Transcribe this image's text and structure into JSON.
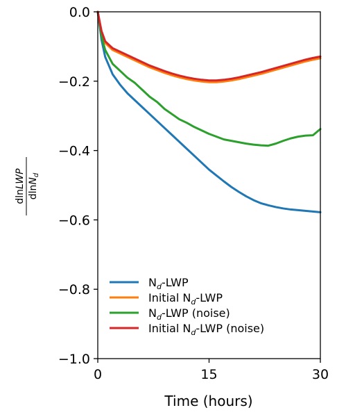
{
  "chart_data": {
    "type": "line",
    "xlabel": "Time (hours)",
    "ylabel_numerator": "dlnLWP",
    "ylabel_denominator": "dlnN_d",
    "xlim": [
      0,
      30
    ],
    "ylim": [
      -1.0,
      0.0
    ],
    "x_ticks": [
      0,
      15,
      30
    ],
    "x_tick_labels": [
      "0",
      "15",
      "30"
    ],
    "y_ticks": [
      0.0,
      -0.2,
      -0.4,
      -0.6,
      -0.8,
      -1.0
    ],
    "y_tick_labels": [
      "0.0",
      "−0.2",
      "−0.4",
      "−0.6",
      "−0.8",
      "−1.0"
    ],
    "grid": false,
    "legend_position": "lower-left",
    "series": [
      {
        "name": "N_d-LWP",
        "legend_main": "N",
        "legend_sub": "d",
        "legend_suffix": "-LWP",
        "color": "#1f77b4",
        "x": [
          0,
          0.5,
          1,
          2,
          3,
          4,
          5,
          6,
          7,
          8,
          9,
          10,
          11,
          12,
          13,
          14,
          15,
          16,
          17,
          18,
          19,
          20,
          21,
          22,
          23,
          24,
          25,
          26,
          27,
          28,
          29,
          30
        ],
        "y": [
          0.0,
          -0.08,
          -0.13,
          -0.18,
          -0.21,
          -0.235,
          -0.255,
          -0.275,
          -0.295,
          -0.315,
          -0.335,
          -0.355,
          -0.375,
          -0.395,
          -0.415,
          -0.435,
          -0.455,
          -0.472,
          -0.489,
          -0.505,
          -0.519,
          -0.532,
          -0.543,
          -0.552,
          -0.558,
          -0.563,
          -0.567,
          -0.57,
          -0.572,
          -0.574,
          -0.576,
          -0.578
        ]
      },
      {
        "name": "Initial N_d-LWP",
        "legend_main": "Initial N",
        "legend_sub": "d",
        "legend_suffix": "-LWP",
        "color": "#ff7f0e",
        "x": [
          0,
          0.5,
          1,
          2,
          3,
          4,
          5,
          6,
          7,
          8,
          9,
          10,
          11,
          12,
          13,
          14,
          15,
          16,
          17,
          18,
          19,
          20,
          21,
          22,
          23,
          24,
          25,
          26,
          27,
          28,
          29,
          30
        ],
        "y": [
          0.0,
          -0.06,
          -0.09,
          -0.11,
          -0.12,
          -0.13,
          -0.14,
          -0.15,
          -0.16,
          -0.168,
          -0.176,
          -0.183,
          -0.189,
          -0.194,
          -0.198,
          -0.201,
          -0.203,
          -0.203,
          -0.201,
          -0.198,
          -0.194,
          -0.189,
          -0.184,
          -0.179,
          -0.173,
          -0.167,
          -0.161,
          -0.155,
          -0.149,
          -0.143,
          -0.138,
          -0.134
        ]
      },
      {
        "name": "N_d-LWP (noise)",
        "legend_main": "N",
        "legend_sub": "d",
        "legend_suffix": "-LWP (noise)",
        "color": "#2ca02c",
        "x": [
          0,
          0.5,
          1,
          2,
          3,
          4,
          5,
          6,
          7,
          8,
          9,
          10,
          11,
          12,
          13,
          14,
          15,
          16,
          17,
          18,
          19,
          20,
          21,
          22,
          23,
          24,
          25,
          26,
          27,
          28,
          29,
          30
        ],
        "y": [
          0.0,
          -0.07,
          -0.11,
          -0.15,
          -0.17,
          -0.19,
          -0.205,
          -0.225,
          -0.245,
          -0.26,
          -0.28,
          -0.295,
          -0.31,
          -0.32,
          -0.332,
          -0.342,
          -0.352,
          -0.36,
          -0.368,
          -0.372,
          -0.376,
          -0.38,
          -0.383,
          -0.385,
          -0.386,
          -0.38,
          -0.372,
          -0.365,
          -0.36,
          -0.357,
          -0.356,
          -0.338
        ]
      },
      {
        "name": "Initial N_d-LWP (noise)",
        "legend_main": "Initial N",
        "legend_sub": "d",
        "legend_suffix": "-LWP (noise)",
        "color": "#d62728",
        "x": [
          0,
          0.5,
          1,
          2,
          3,
          4,
          5,
          6,
          7,
          8,
          9,
          10,
          11,
          12,
          13,
          14,
          15,
          16,
          17,
          18,
          19,
          20,
          21,
          22,
          23,
          24,
          25,
          26,
          27,
          28,
          29,
          30
        ],
        "y": [
          0.0,
          -0.055,
          -0.085,
          -0.105,
          -0.115,
          -0.125,
          -0.135,
          -0.145,
          -0.155,
          -0.163,
          -0.171,
          -0.178,
          -0.184,
          -0.189,
          -0.193,
          -0.196,
          -0.198,
          -0.198,
          -0.196,
          -0.193,
          -0.189,
          -0.184,
          -0.179,
          -0.174,
          -0.168,
          -0.162,
          -0.156,
          -0.15,
          -0.144,
          -0.138,
          -0.133,
          -0.129
        ]
      }
    ]
  }
}
